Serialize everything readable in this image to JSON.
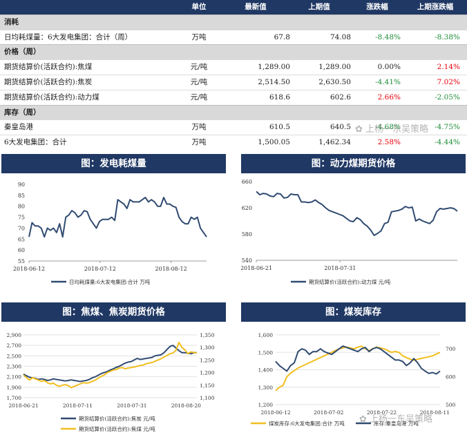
{
  "table": {
    "headers": [
      "",
      "单位",
      "最新值",
      "上期值",
      "涨跌幅",
      "上期涨跌幅"
    ],
    "rows": [
      {
        "kind": "section",
        "name": "消耗"
      },
      {
        "kind": "data",
        "name": "日均耗煤量：6大发电集团：合计（周）",
        "unit": "万吨",
        "latest": "67.8",
        "prev": "74.08",
        "chg": "-8.48%",
        "prev_chg": "-8.38%",
        "chg_color": "green",
        "prev_chg_color": "green"
      },
      {
        "kind": "section",
        "name": "价格（周）"
      },
      {
        "kind": "data",
        "name": "期货结算价(活跃合约):焦煤",
        "unit": "元/吨",
        "latest": "1,289.00",
        "prev": "1,289.00",
        "chg": "0.00%",
        "prev_chg": "2.14%",
        "chg_color": "black",
        "prev_chg_color": "red"
      },
      {
        "kind": "data",
        "name": "期货结算价(活跃合约):焦炭",
        "unit": "元/吨",
        "latest": "2,514.50",
        "prev": "2,630.50",
        "chg": "-4.41%",
        "prev_chg": "7.02%",
        "chg_color": "green",
        "prev_chg_color": "red"
      },
      {
        "kind": "data",
        "name": "期货结算价(活跃合约):动力煤",
        "unit": "元/吨",
        "latest": "618.6",
        "prev": "602.6",
        "chg": "2.66%",
        "prev_chg": "-2.05%",
        "chg_color": "red",
        "prev_chg_color": "green"
      },
      {
        "kind": "section",
        "name": "库存（周）"
      },
      {
        "kind": "data",
        "name": "秦皇岛港",
        "unit": "万吨",
        "latest": "610.5",
        "prev": "640.5",
        "chg": "-4.68%",
        "prev_chg": "-4.75%",
        "chg_color": "green",
        "prev_chg_color": "green"
      },
      {
        "kind": "data",
        "name": "6大发电集团：合计",
        "unit": "万吨",
        "latest": "1,500.05",
        "prev": "1,462.34",
        "chg": "2.58%",
        "prev_chg": "-4.44%",
        "chg_color": "red",
        "prev_chg_color": "green"
      }
    ]
  },
  "watermark": "上杨一东吴策略",
  "colors": {
    "navy": "#203864",
    "line_navy": "#2f4a70",
    "gold": "#f0be1e",
    "up": "#e8000b",
    "down": "#1f8f3a"
  },
  "chart_data": [
    {
      "type": "line",
      "title": "图：发电耗煤量",
      "x_tick_labels": [
        "2018-06-12",
        "2018-07-12",
        "2018-08-12"
      ],
      "y_ticks": [
        55,
        60,
        65,
        70,
        75,
        80,
        85,
        90
      ],
      "ylim": [
        55,
        90
      ],
      "series": [
        {
          "name": "日均耗煤量:6大发电集团:合计 万吨",
          "color": "#2f4a70",
          "values": [
            66,
            72.5,
            71,
            71,
            70,
            66,
            70,
            69,
            70,
            68,
            72,
            66,
            75,
            76,
            78,
            77,
            75,
            76,
            78,
            77.5,
            74,
            72,
            70,
            73,
            74,
            74,
            74,
            75,
            73.5,
            83,
            82,
            81,
            79,
            83,
            82,
            82,
            82,
            83,
            84,
            82,
            83,
            82,
            80,
            80,
            84,
            81,
            81,
            80,
            79.5,
            75,
            73,
            72,
            72,
            75,
            74,
            75,
            70,
            68,
            66
          ]
        }
      ]
    },
    {
      "type": "line",
      "title": "图：动力煤期货价格",
      "x_tick_labels": [
        "2018-06-21",
        "2018-07-31"
      ],
      "y_ticks": [
        540,
        580,
        620,
        660
      ],
      "ylim": [
        540,
        660
      ],
      "series": [
        {
          "name": "期货结算价(活跃合约):动力煤 元/吨",
          "color": "#2f4a70",
          "values": [
            645,
            640,
            642,
            641,
            638,
            637,
            642,
            641,
            635,
            636,
            641,
            640,
            640,
            629,
            629,
            628,
            629,
            632,
            628,
            625,
            620,
            616,
            614,
            612,
            610,
            608,
            604,
            600,
            599,
            605,
            602,
            596,
            592,
            586,
            578,
            581,
            585,
            596,
            598,
            614,
            615,
            616,
            618,
            622,
            620,
            621,
            600,
            603,
            600,
            598,
            596,
            601,
            614,
            619,
            618,
            619,
            620,
            619,
            615
          ]
        }
      ]
    },
    {
      "type": "line",
      "title": "图：焦煤、焦炭期货价格",
      "x_tick_labels": [
        "2018-06-21",
        "2018-07-11",
        "2018-07-31",
        "2018-08-20"
      ],
      "y_left_ticks": [
        "1,700",
        "1,900",
        "2,100",
        "2,300",
        "2,500",
        "2,700",
        "2,900"
      ],
      "y_right_ticks": [
        "1,100",
        "1,150",
        "1,200",
        "1,250",
        "1,300",
        "1,350"
      ],
      "ylim_left": [
        1700,
        2900
      ],
      "ylim_right": [
        1100,
        1350
      ],
      "series": [
        {
          "name": "期货结算价(活跃合约):焦炭 元/吨",
          "axis": "left",
          "color": "#2f4a70",
          "values": [
            2150,
            2120,
            2090,
            2080,
            2070,
            2050,
            2060,
            2050,
            2030,
            2040,
            2060,
            2050,
            2040,
            2030,
            2020,
            2030,
            2040,
            2030,
            2020,
            2010,
            2020,
            2030,
            2050,
            2080,
            2100,
            2130,
            2160,
            2180,
            2200,
            2230,
            2250,
            2280,
            2300,
            2330,
            2360,
            2380,
            2390,
            2420,
            2450,
            2430,
            2440,
            2450,
            2460,
            2470,
            2500,
            2510,
            2520,
            2560,
            2620,
            2680,
            2700,
            2650,
            2600,
            2560,
            2560,
            2550,
            2540,
            2560,
            2560
          ]
        },
        {
          "name": "期货结算价(活跃合约):焦煤 元/吨",
          "axis": "right",
          "color": "#f0be1e",
          "values": [
            1190,
            1180,
            1170,
            1180,
            1175,
            1170,
            1165,
            1168,
            1160,
            1155,
            1158,
            1150,
            1145,
            1150,
            1152,
            1148,
            1140,
            1145,
            1150,
            1155,
            1160,
            1158,
            1160,
            1165,
            1170,
            1178,
            1185,
            1190,
            1200,
            1205,
            1210,
            1212,
            1218,
            1220,
            1215,
            1218,
            1220,
            1222,
            1225,
            1228,
            1230,
            1235,
            1238,
            1240,
            1245,
            1250,
            1255,
            1262,
            1268,
            1275,
            1278,
            1288,
            1320,
            1300,
            1290,
            1275,
            1282,
            1280,
            1278
          ]
        }
      ]
    },
    {
      "type": "line",
      "title": "图：煤炭库存",
      "x_tick_labels": [
        "2018-06-12",
        "2018-07-02",
        "2018-07-22",
        "2018-08-11"
      ],
      "y_left_ticks": [
        "1,200",
        "1,300",
        "1,400",
        "1,500",
        "1,600"
      ],
      "y_right_ticks": [
        "500",
        "600",
        "700"
      ],
      "ylim_left": [
        1200,
        1600
      ],
      "ylim_right": [
        500,
        750
      ],
      "series": [
        {
          "name": "煤炭库存:6大发电集团:合计 万吨",
          "axis": "left",
          "color": "#f0be1e",
          "values": [
            1280,
            1300,
            1310,
            1360,
            1380,
            1395,
            1410,
            1420,
            1430,
            1440,
            1450,
            1460,
            1470,
            1480,
            1490,
            1500,
            1510,
            1520,
            1525,
            1530,
            1525,
            1520,
            1530,
            1535,
            1520,
            1510,
            1520,
            1530,
            1525,
            1520,
            1510,
            1500,
            1505,
            1500,
            1480,
            1470,
            1460,
            1455,
            1460,
            1465,
            1470,
            1475,
            1480,
            1490,
            1500
          ]
        },
        {
          "name": "库存:秦皇岛港 万吨",
          "axis": "right",
          "color": "#2f4a70",
          "values": [
            655,
            640,
            630,
            620,
            640,
            650,
            690,
            700,
            695,
            680,
            690,
            690,
            700,
            690,
            685,
            680,
            690,
            700,
            710,
            705,
            700,
            695,
            690,
            700,
            705,
            690,
            700,
            705,
            700,
            690,
            680,
            670,
            660,
            660,
            655,
            640,
            650,
            665,
            650,
            630,
            620,
            612,
            615,
            610,
            620
          ]
        }
      ]
    }
  ]
}
